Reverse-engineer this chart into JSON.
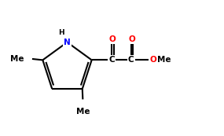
{
  "bg_color": "#ffffff",
  "bond_color": "#000000",
  "N_color": "#0000ff",
  "O_color": "#ff0000",
  "text_color": "#000000",
  "lw": 1.5,
  "fs": 7.5,
  "figsize": [
    2.85,
    1.73
  ],
  "dpi": 100,
  "xlim": [
    -1.5,
    8.5
  ],
  "ylim": [
    -1.8,
    4.2
  ]
}
